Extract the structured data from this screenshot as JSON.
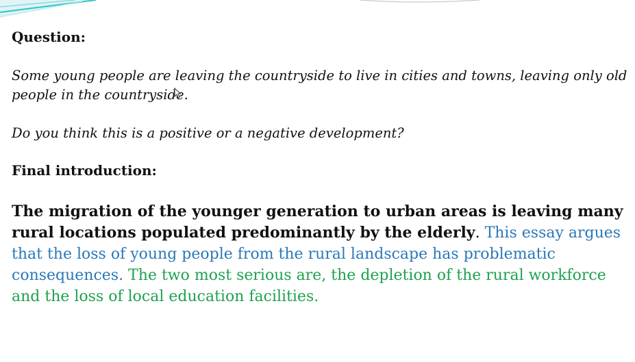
{
  "question": {
    "heading": "Question:",
    "prompt": "Some young people are leaving the countryside to live in cities and towns, leaving only old people in the countryside.",
    "ask": "Do you think this is a positive or a negative development?"
  },
  "introduction": {
    "heading": "Final introduction:",
    "background_statement": "The migration of the younger generation to urban areas is leaving many rural locations populated predominantly by the elderly",
    "period": ". ",
    "thesis": "This essay argues that the loss of young people from the rural landscape has problematic consequences.",
    "outline": " The two most serious are, the depletion of the rural workforce and the loss of local education facilities."
  },
  "colors": {
    "text": "#111111",
    "thesis": "#2a78b8",
    "outline": "#1ea14f",
    "accent": "#2ec4c4"
  },
  "icons": {
    "cursor": "mouse-pointer-icon",
    "decoration": "slide-corner-decoration"
  }
}
